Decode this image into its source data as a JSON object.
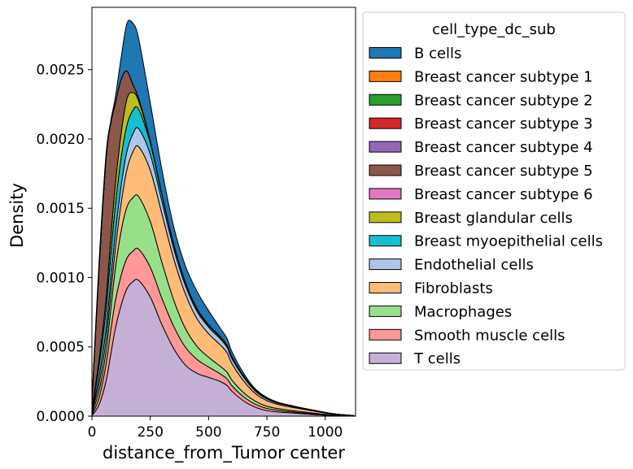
{
  "chart_data": {
    "type": "area",
    "stacked": true,
    "title": "",
    "xlabel": "distance_from_Tumor center",
    "ylabel": "Density",
    "xlim": [
      0,
      1130
    ],
    "ylim": [
      0,
      0.00295
    ],
    "xticks": [
      0,
      250,
      500,
      750,
      1000
    ],
    "xtick_labels": [
      "0",
      "250",
      "500",
      "750",
      "1000"
    ],
    "yticks": [
      0,
      0.0005,
      0.001,
      0.0015,
      0.002,
      0.0025
    ],
    "ytick_labels": [
      "0.0000",
      "0.0005",
      "0.0010",
      "0.0015",
      "0.0020",
      "0.0025"
    ],
    "grid": false,
    "legend_position": "outside-right",
    "legend_title": "cell_type_dc_sub",
    "x": [
      0,
      30,
      60,
      80,
      100,
      125,
      150,
      175,
      200,
      250,
      300,
      350,
      400,
      450,
      500,
      550,
      580,
      600,
      650,
      700,
      750,
      800,
      850,
      900,
      950,
      1000,
      1050,
      1100,
      1130
    ],
    "series": [
      {
        "name": "B cells",
        "color": "#1f77b4",
        "values": [
          1.4e-05,
          4.8e-05,
          3e-05,
          1.4e-05,
          4.3e-05,
          0.000157,
          0.000344,
          0.000441,
          0.000431,
          0.000271,
          0.000176,
          0.000124,
          0.000117,
          0.000124,
          0.000101,
          6e-05,
          4.8e-05,
          3.6e-05,
          1.9e-05,
          9e-06,
          6e-06,
          4e-06,
          4e-06,
          3e-06,
          3e-06,
          2e-06,
          1e-06,
          1e-06,
          0
        ]
      },
      {
        "name": "Breast cancer subtype 1",
        "color": "#ff7f0e",
        "values": [
          0,
          0,
          0,
          0,
          0,
          0,
          0,
          0,
          0,
          0,
          0,
          0,
          0,
          0,
          0,
          0,
          0,
          0,
          0,
          0,
          0,
          0,
          0,
          0,
          0,
          0,
          0,
          0,
          0
        ]
      },
      {
        "name": "Breast cancer subtype 2",
        "color": "#2ca02c",
        "values": [
          0,
          0,
          0,
          0,
          0,
          0,
          0,
          0,
          0,
          0,
          0,
          0,
          0,
          0,
          0,
          0,
          0,
          0,
          0,
          0,
          0,
          0,
          0,
          0,
          0,
          0,
          0,
          0,
          0
        ]
      },
      {
        "name": "Breast cancer subtype 3",
        "color": "#d62728",
        "values": [
          0,
          0,
          0,
          0,
          0,
          0,
          0,
          0,
          0,
          0,
          0,
          0,
          0,
          0,
          0,
          0,
          0,
          0,
          0,
          0,
          0,
          0,
          0,
          0,
          0,
          0,
          0,
          0,
          0
        ]
      },
      {
        "name": "Breast cancer subtype 4",
        "color": "#9467bd",
        "values": [
          0,
          0,
          0,
          0,
          0,
          0,
          0,
          0,
          0,
          0,
          0,
          0,
          0,
          0,
          0,
          0,
          0,
          0,
          0,
          0,
          0,
          0,
          0,
          0,
          0,
          0,
          0,
          0,
          0
        ]
      },
      {
        "name": "Breast cancer subtype 5",
        "color": "#8c564b",
        "values": [
          5e-05,
          0.00065,
          0.00101,
          0.00084,
          0.00059,
          0.00039,
          0.0002,
          6e-05,
          2e-05,
          5e-06,
          2e-06,
          2e-06,
          3e-06,
          4e-06,
          5e-06,
          5e-06,
          5e-06,
          5e-06,
          4e-06,
          3e-06,
          2e-06,
          2e-06,
          1e-06,
          1e-06,
          1e-06,
          1e-06,
          0,
          0,
          0
        ]
      },
      {
        "name": "Breast cancer subtype 6",
        "color": "#e377c2",
        "values": [
          0,
          0,
          0,
          0,
          0,
          0,
          0,
          0,
          0,
          0,
          0,
          0,
          0,
          0,
          0,
          0,
          0,
          0,
          0,
          0,
          0,
          0,
          0,
          0,
          0,
          0,
          0,
          0,
          0
        ]
      },
      {
        "name": "Breast glandular cells",
        "color": "#bcbd22",
        "values": [
          5e-06,
          4e-05,
          8e-05,
          0.00012,
          0.00015,
          0.000175,
          0.00019,
          0.00013,
          6e-05,
          1.5e-05,
          5e-06,
          3e-06,
          2e-06,
          2e-06,
          2e-06,
          2e-06,
          2e-06,
          2e-06,
          1e-06,
          1e-06,
          1e-06,
          0,
          0,
          0,
          0,
          0,
          0,
          0,
          0
        ]
      },
      {
        "name": "Breast myoepithelial cells",
        "color": "#17becf",
        "values": [
          1e-05,
          8e-05,
          0.00014,
          0.00018,
          0.0002,
          0.000205,
          0.00019,
          0.00017,
          0.00014,
          8e-05,
          4.5e-05,
          3e-05,
          2e-05,
          1.5e-05,
          1.2e-05,
          1e-05,
          8e-06,
          7e-06,
          5e-06,
          3e-06,
          2e-06,
          1e-06,
          1e-06,
          0,
          0,
          0,
          0,
          0,
          0
        ]
      },
      {
        "name": "Endothelial cells",
        "color": "#aec7e8",
        "values": [
          8e-06,
          5e-05,
          8e-05,
          0.0001,
          0.000115,
          0.000125,
          0.00013,
          0.00013,
          0.00013,
          0.000115,
          9e-05,
          7.2e-05,
          6e-05,
          5.2e-05,
          4.7e-05,
          4.3e-05,
          3.9e-05,
          3.5e-05,
          2.7e-05,
          1.8e-05,
          1.2e-05,
          8e-06,
          6e-06,
          4e-06,
          3e-06,
          2e-06,
          1e-06,
          1e-06,
          0
        ]
      },
      {
        "name": "Fibroblasts",
        "color": "#ffbb78",
        "values": [
          1e-05,
          5e-05,
          8e-05,
          0.00011,
          0.00014,
          0.0002,
          0.00027,
          0.00033,
          0.00036,
          0.00037,
          0.00035,
          0.0003,
          0.00025,
          0.0002,
          0.00017,
          0.000155,
          0.00014,
          0.00012,
          8.5e-05,
          5.5e-05,
          4e-05,
          3e-05,
          2.5e-05,
          2e-05,
          1.5e-05,
          1e-05,
          6e-06,
          3e-06,
          1e-06
        ]
      },
      {
        "name": "Macrophages",
        "color": "#98df8a",
        "values": [
          1e-05,
          5e-05,
          9e-05,
          0.00015,
          0.00023,
          0.00032,
          0.00037,
          0.000385,
          0.00038,
          0.00033,
          0.00026,
          0.00019,
          0.000135,
          9.5e-05,
          7e-05,
          5.5e-05,
          4.8e-05,
          4e-05,
          3e-05,
          2.2e-05,
          1.6e-05,
          1.2e-05,
          1e-05,
          8e-06,
          6e-06,
          4e-06,
          2e-06,
          1e-06,
          0
        ]
      },
      {
        "name": "Smooth muscle cells",
        "color": "#ff9896",
        "values": [
          6e-06,
          5e-05,
          0.00012,
          0.00017,
          0.0002,
          0.000215,
          0.00022,
          0.00022,
          0.000225,
          0.000215,
          0.00019,
          0.00016,
          0.00013,
          0.0001,
          7.5e-05,
          5.5e-05,
          4.8e-05,
          4e-05,
          3e-05,
          2.2e-05,
          1.6e-05,
          1.2e-05,
          8e-06,
          6e-06,
          4e-06,
          2e-06,
          1e-06,
          0,
          0
        ]
      },
      {
        "name": "T cells",
        "color": "#c5b0d5",
        "values": [
          5e-06,
          8e-05,
          0.00025,
          0.00044,
          0.00063,
          0.0008,
          0.00092,
          0.00097,
          0.00098,
          0.00086,
          0.00066,
          0.00049,
          0.00037,
          0.00031,
          0.00028,
          0.00025,
          0.00022,
          0.00018,
          0.00011,
          6.5e-05,
          4e-05,
          3e-05,
          2.4e-05,
          1.8e-05,
          1.2e-05,
          7e-06,
          4e-06,
          2e-06,
          1e-06
        ]
      }
    ]
  }
}
